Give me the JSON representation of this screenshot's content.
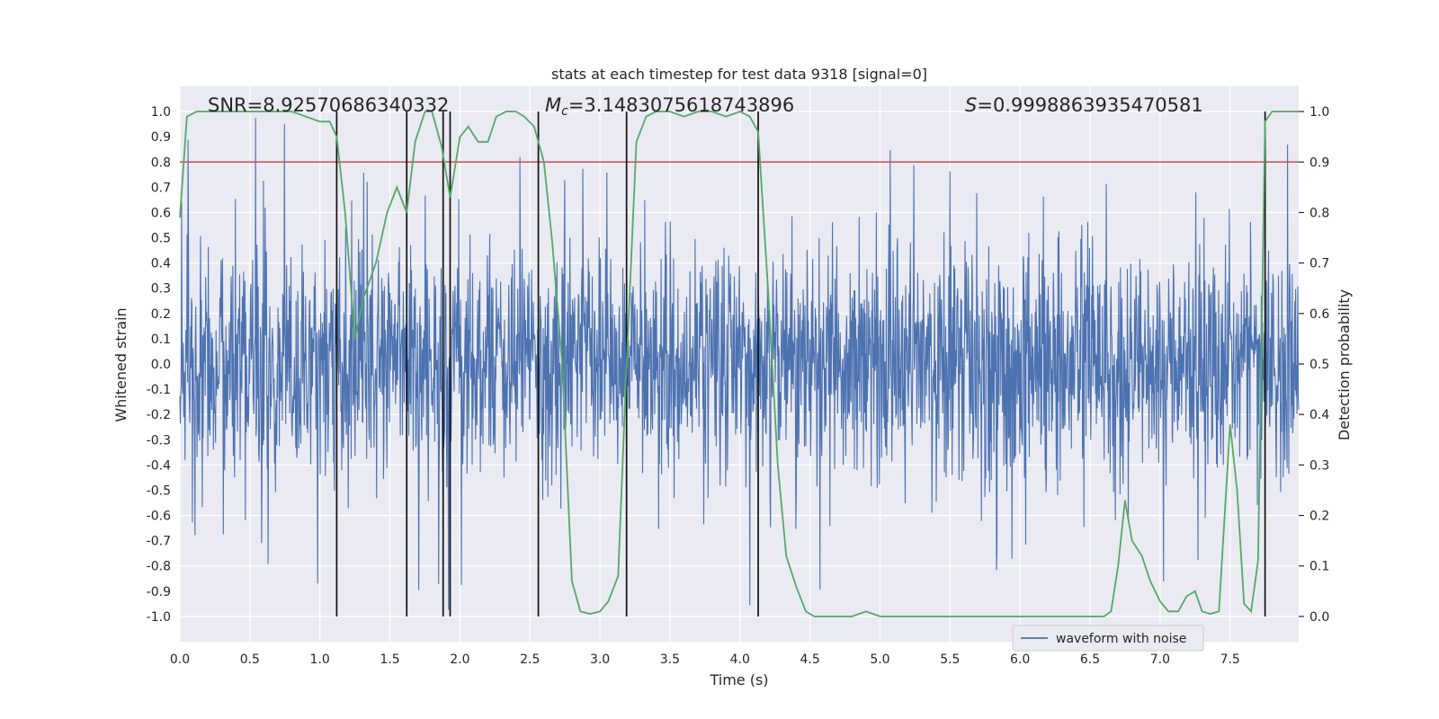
{
  "chart_data": {
    "type": "line",
    "title": "stats at each timestep for test data 9318 [signal=0]",
    "xlabel": "Time (s)",
    "ylabel": "Whitened strain",
    "ylabel_right": "Detection probability",
    "xlim": [
      0.0,
      7.99
    ],
    "ylim": [
      -1.1,
      1.1
    ],
    "ylim_right": [
      -0.05,
      1.05
    ],
    "x_ticks": [
      "0.0",
      "0.5",
      "1.0",
      "1.5",
      "2.0",
      "2.5",
      "3.0",
      "3.5",
      "4.0",
      "4.5",
      "5.0",
      "5.5",
      "6.0",
      "6.5",
      "7.0",
      "7.5"
    ],
    "y_ticks": [
      "1.0",
      "0.9",
      "0.8",
      "0.7",
      "0.6",
      "0.5",
      "0.4",
      "0.3",
      "0.2",
      "0.1",
      "0.0",
      "-0.1",
      "-0.2",
      "-0.3",
      "-0.4",
      "-0.5",
      "-0.6",
      "-0.7",
      "-0.8",
      "-0.9",
      "-1.0"
    ],
    "y_ticks_right": [
      "1.0",
      "0.9",
      "0.8",
      "0.7",
      "0.6",
      "0.5",
      "0.4",
      "0.3",
      "0.2",
      "0.1",
      "0.0"
    ],
    "grid": true,
    "legend_position": "lower-right",
    "annotations": {
      "snr": "SNR=8.92570686340332",
      "mc_symbol": "M",
      "mc_sub": "c",
      "mc_value": "=3.1483075618743896",
      "s_symbol": "S",
      "s_value": "=0.9998863935470581"
    },
    "threshold": {
      "value": 0.8,
      "color": "#c44e52"
    },
    "vertical_lines": [
      1.12,
      1.62,
      1.88,
      1.93,
      2.56,
      3.19,
      4.13,
      7.75
    ],
    "series": [
      {
        "name": "waveform with noise",
        "color": "#4c72b0",
        "axis": "left",
        "style": "dense noise, amplitude mostly within ±0.5 with spikes up to ±0.98",
        "seed": 9318
      },
      {
        "axis": "right",
        "color": "#55a868",
        "x": [
          0.0,
          0.05,
          0.12,
          0.2,
          0.5,
          0.8,
          0.9,
          1.0,
          1.07,
          1.12,
          1.18,
          1.25,
          1.31,
          1.4,
          1.48,
          1.55,
          1.62,
          1.68,
          1.75,
          1.8,
          1.87,
          1.93,
          2.0,
          2.06,
          2.13,
          2.2,
          2.26,
          2.33,
          2.4,
          2.46,
          2.53,
          2.6,
          2.66,
          2.73,
          2.8,
          2.86,
          2.93,
          3.0,
          3.06,
          3.13,
          3.19,
          3.26,
          3.33,
          3.4,
          3.5,
          3.6,
          3.7,
          3.8,
          3.9,
          4.0,
          4.07,
          4.13,
          4.2,
          4.27,
          4.33,
          4.4,
          4.47,
          4.53,
          4.6,
          4.7,
          4.8,
          4.9,
          5.0,
          5.1,
          5.3,
          5.5,
          5.7,
          5.9,
          6.1,
          6.3,
          6.5,
          6.6,
          6.65,
          6.7,
          6.75,
          6.8,
          6.87,
          6.93,
          7.0,
          7.06,
          7.13,
          7.19,
          7.25,
          7.3,
          7.36,
          7.42,
          7.5,
          7.55,
          7.6,
          7.65,
          7.7,
          7.75,
          7.8,
          7.85,
          7.9,
          7.99
        ],
        "values": [
          0.79,
          0.99,
          1.0,
          1.0,
          1.0,
          1.0,
          0.99,
          0.98,
          0.98,
          0.95,
          0.8,
          0.55,
          0.63,
          0.7,
          0.8,
          0.85,
          0.8,
          0.94,
          1.0,
          1.0,
          0.93,
          0.83,
          0.95,
          0.97,
          0.94,
          0.94,
          0.99,
          1.0,
          1.0,
          0.99,
          0.97,
          0.9,
          0.74,
          0.5,
          0.07,
          0.01,
          0.005,
          0.01,
          0.03,
          0.08,
          0.5,
          0.94,
          0.99,
          1.0,
          1.0,
          0.99,
          1.0,
          1.0,
          0.99,
          1.0,
          0.99,
          0.96,
          0.65,
          0.3,
          0.12,
          0.06,
          0.01,
          0.0,
          0.0,
          0.0,
          0.0,
          0.01,
          0.0,
          0.0,
          0.0,
          0.0,
          0.0,
          0.0,
          0.0,
          0.0,
          0.0,
          0.0,
          0.01,
          0.1,
          0.23,
          0.15,
          0.12,
          0.07,
          0.03,
          0.01,
          0.01,
          0.04,
          0.05,
          0.01,
          0.005,
          0.01,
          0.38,
          0.25,
          0.025,
          0.01,
          0.11,
          0.98,
          1.0,
          1.0,
          1.0,
          1.0
        ]
      }
    ]
  }
}
